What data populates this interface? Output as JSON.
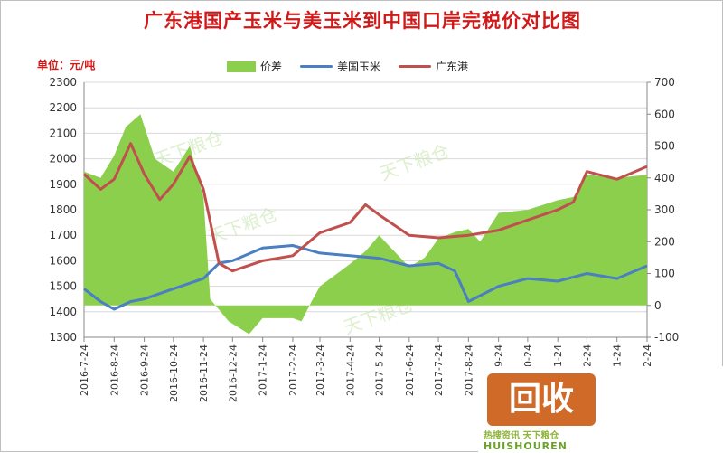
{
  "title": "广东港国产玉米与美玉米到中国口岸完税价对比图",
  "unit_label": "单位：元/吨",
  "legend": [
    "价差",
    "美国玉米",
    "广东港"
  ],
  "colors": {
    "spread": "#8ccf4d",
    "us_corn": "#4a7fc1",
    "guangdong": "#c0504d",
    "title": "#d01a1a"
  },
  "watermark": "天下粮仓",
  "logo": {
    "main": "回收",
    "sub": "热搜资讯 天下粮仓",
    "en": "HUISHOUREN"
  },
  "chart_data": {
    "type": "line",
    "title": "广东港国产玉米与美玉米到中国口岸完税价对比图",
    "ylabel": "单位：元/吨",
    "ylim": [
      1300,
      2300
    ],
    "y2lim": [
      -100,
      700
    ],
    "yticks": [
      "1300",
      "1400",
      "1500",
      "1600",
      "1700",
      "1800",
      "1900",
      "2000",
      "2100",
      "2200",
      "2300"
    ],
    "y2ticks": [
      "-100",
      "0",
      "100",
      "200",
      "300",
      "400",
      "500",
      "600",
      "700"
    ],
    "x_start": "2016-7-24",
    "x_end": "2018-2-24",
    "xticks": [
      "2016-7-24",
      "2016-8-24",
      "2016-9-24",
      "2016-10-24",
      "2016-11-24",
      "2016-12-24",
      "2017-1-24",
      "2017-2-24",
      "2017-3-24",
      "2017-4-24",
      "2017-5-24",
      "2017-6-24",
      "2017-7-24",
      "2017-8-24",
      "2017-9-24",
      "2017-10-24",
      "2017-11-24",
      "2017-12-24",
      "2018-1-24",
      "2018-2-24"
    ],
    "series": [
      {
        "name": "价差",
        "type": "area",
        "axis": "right",
        "x": [
          "2016-7-24",
          "2016-8-10",
          "2016-8-24",
          "2016-9-5",
          "2016-9-20",
          "2016-10-5",
          "2016-10-24",
          "2016-11-10",
          "2016-11-24",
          "2016-12-1",
          "2016-12-20",
          "2017-1-10",
          "2017-1-24",
          "2017-2-24",
          "2017-3-5",
          "2017-3-15",
          "2017-3-24",
          "2017-4-24",
          "2017-5-10",
          "2017-5-24",
          "2017-6-24",
          "2017-7-10",
          "2017-7-24",
          "2017-8-10",
          "2017-8-24",
          "2017-9-5",
          "2017-9-24",
          "2017-10-24",
          "2017-11-24",
          "2017-12-10",
          "2017-12-24",
          "2018-1-24",
          "2018-2-24"
        ],
        "values": [
          420,
          400,
          470,
          560,
          600,
          460,
          420,
          500,
          340,
          20,
          -50,
          -90,
          -40,
          -40,
          -50,
          10,
          60,
          130,
          170,
          220,
          120,
          150,
          210,
          230,
          240,
          200,
          290,
          300,
          330,
          340,
          410,
          400,
          410
        ]
      },
      {
        "name": "美国玉米",
        "type": "line",
        "axis": "left",
        "x": [
          "2016-7-24",
          "2016-8-10",
          "2016-8-24",
          "2016-9-10",
          "2016-9-24",
          "2016-10-24",
          "2016-11-24",
          "2016-12-10",
          "2016-12-24",
          "2017-1-24",
          "2017-2-24",
          "2017-3-24",
          "2017-4-24",
          "2017-5-24",
          "2017-6-24",
          "2017-7-24",
          "2017-8-10",
          "2017-8-24",
          "2017-9-24",
          "2017-10-24",
          "2017-11-24",
          "2017-12-24",
          "2018-1-24",
          "2018-2-24"
        ],
        "values": [
          1490,
          1440,
          1410,
          1440,
          1450,
          1490,
          1530,
          1590,
          1600,
          1650,
          1660,
          1630,
          1620,
          1610,
          1580,
          1590,
          1560,
          1440,
          1500,
          1530,
          1520,
          1550,
          1530,
          1580
        ]
      },
      {
        "name": "广东港",
        "type": "line",
        "axis": "left",
        "x": [
          "2016-7-24",
          "2016-8-10",
          "2016-8-24",
          "2016-9-10",
          "2016-9-24",
          "2016-10-10",
          "2016-10-24",
          "2016-11-10",
          "2016-11-24",
          "2016-12-10",
          "2016-12-24",
          "2017-1-24",
          "2017-2-24",
          "2017-3-24",
          "2017-4-24",
          "2017-5-10",
          "2017-5-24",
          "2017-6-24",
          "2017-7-24",
          "2017-8-24",
          "2017-9-24",
          "2017-10-24",
          "2017-11-24",
          "2017-12-10",
          "2017-12-24",
          "2018-1-24",
          "2018-2-24"
        ],
        "values": [
          1940,
          1880,
          1920,
          2060,
          1940,
          1840,
          1900,
          2010,
          1880,
          1590,
          1560,
          1600,
          1620,
          1710,
          1750,
          1820,
          1780,
          1700,
          1690,
          1700,
          1720,
          1760,
          1800,
          1830,
          1950,
          1920,
          1970
        ]
      }
    ]
  }
}
